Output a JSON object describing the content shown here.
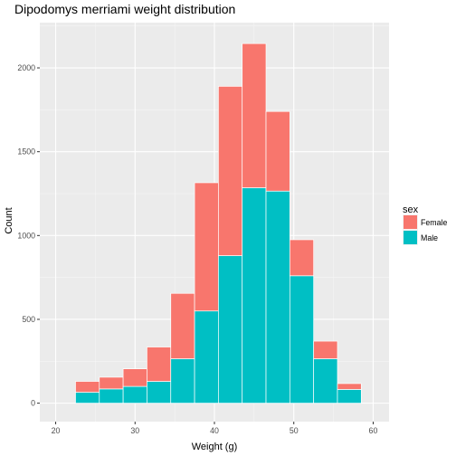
{
  "chart_data": {
    "type": "bar",
    "stacked": true,
    "title": "Dipodomys merriami weight distribution",
    "xlabel": "Weight (g)",
    "ylabel": "Count",
    "xlim": [
      18,
      62
    ],
    "ylim": [
      -110,
      2270
    ],
    "x_ticks": [
      20,
      30,
      40,
      50,
      60
    ],
    "y_ticks": [
      0,
      500,
      1000,
      1500,
      2000
    ],
    "bin_width": 3,
    "bins": [
      22.5,
      25.5,
      28.5,
      31.5,
      34.5,
      37.5,
      40.5,
      43.5,
      46.5,
      49.5,
      52.5,
      55.5
    ],
    "grid": true,
    "legend_position": "right",
    "legend_title": "sex",
    "series": [
      {
        "name": "Male",
        "color": "#00BFC4",
        "values": [
          65,
          85,
          100,
          130,
          265,
          550,
          880,
          1285,
          1265,
          760,
          265,
          82
        ]
      },
      {
        "name": "Female",
        "color": "#F8766D",
        "values": [
          65,
          70,
          105,
          205,
          390,
          765,
          1010,
          860,
          475,
          215,
          105,
          35
        ]
      }
    ],
    "legend_order": [
      "Female",
      "Male"
    ]
  }
}
